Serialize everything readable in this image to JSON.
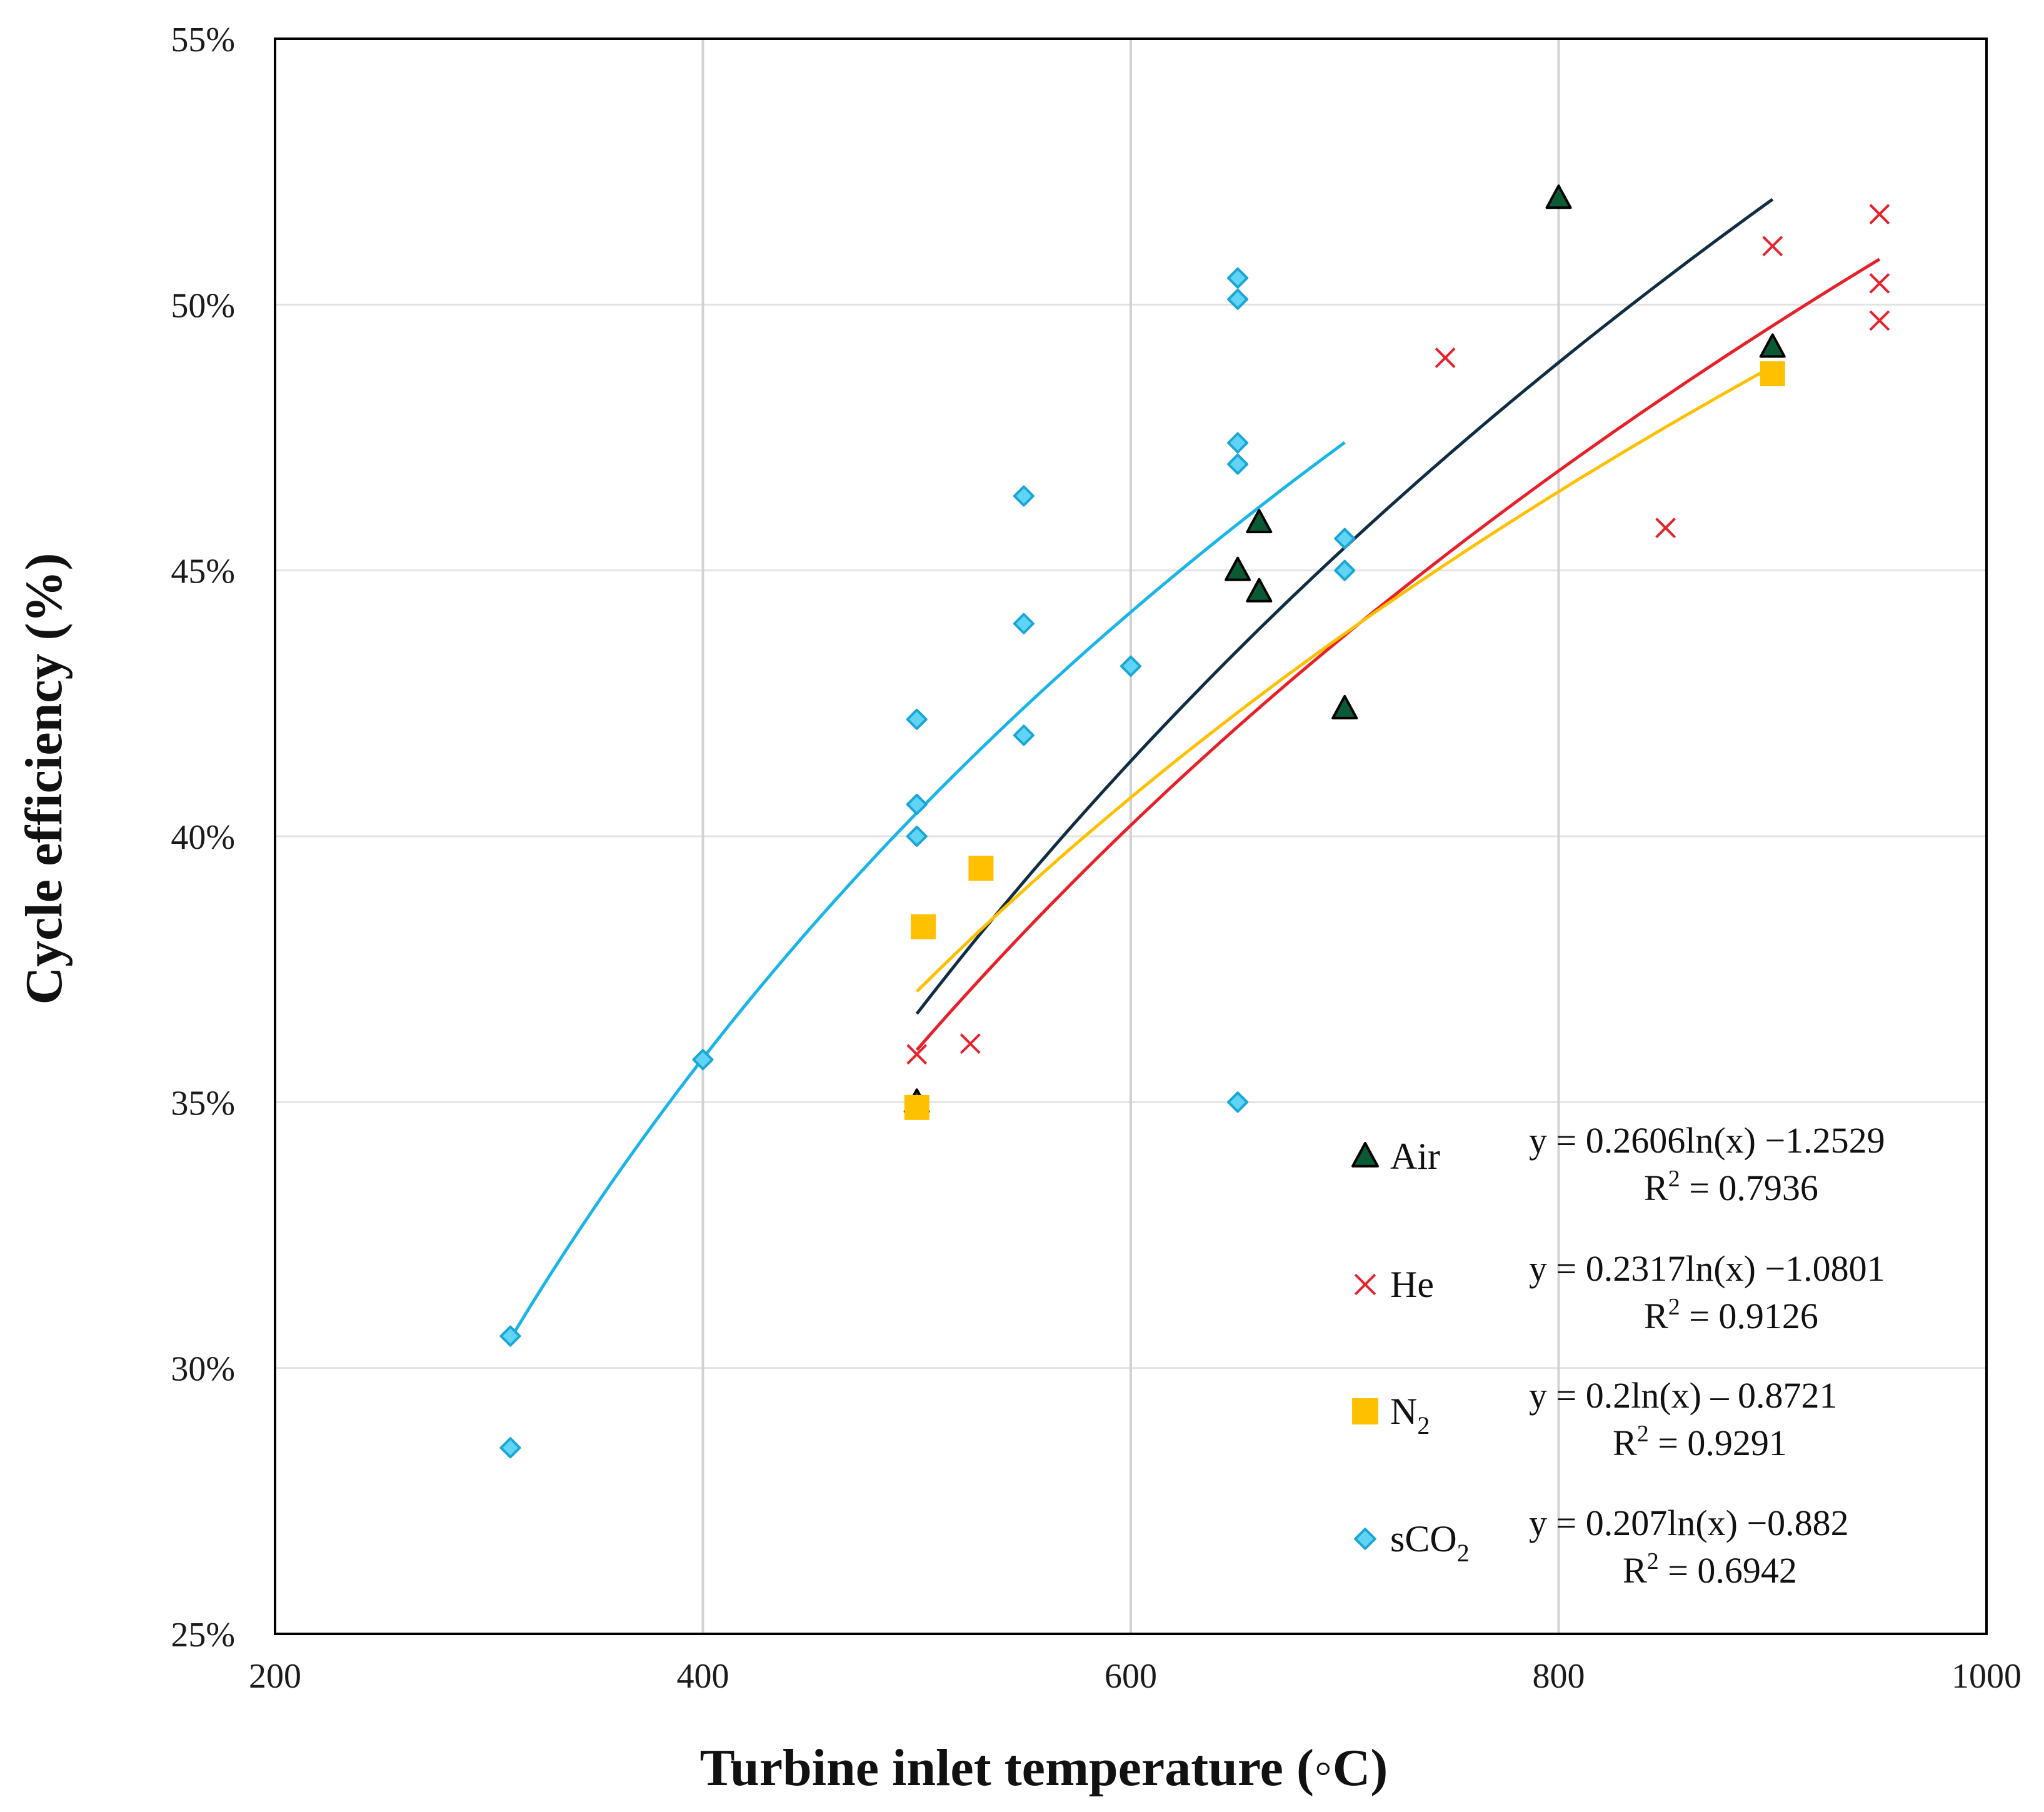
{
  "chart_data": {
    "type": "scatter",
    "title": "",
    "xlabel": "Turbine inlet temperature (◦C)",
    "ylabel": "Cycle efficiency (%)",
    "xlim": [
      200,
      1000
    ],
    "ylim": [
      0.25,
      0.55
    ],
    "x_ticks": [
      200,
      400,
      600,
      800,
      1000
    ],
    "x_tick_labels": [
      "200",
      "400",
      "600",
      "800",
      "1000"
    ],
    "y_ticks": [
      0.25,
      0.3,
      0.35,
      0.4,
      0.45,
      0.5,
      0.55
    ],
    "y_tick_labels": [
      "25%",
      "30%",
      "35%",
      "40%",
      "45%",
      "50%",
      "55%"
    ],
    "grid": {
      "vertical": true,
      "horizontal": true
    },
    "legend_position": "bottom-right",
    "series": [
      {
        "name": "Air",
        "name_main": "Air",
        "name_sub": "",
        "marker": "triangle",
        "color": "#0b5a36",
        "edge": "#000000",
        "points": [
          [
            500,
            0.35
          ],
          [
            650,
            0.45
          ],
          [
            660,
            0.459
          ],
          [
            660,
            0.446
          ],
          [
            700,
            0.424
          ],
          [
            800,
            0.52
          ],
          [
            900,
            0.492
          ]
        ],
        "trend": {
          "a": 0.2606,
          "b": -1.2529,
          "x_range": [
            500,
            900
          ],
          "color": "#0f2d45"
        },
        "equation": "y = 0.2606ln(x) −1.2529",
        "r2_value": " = 0.7936"
      },
      {
        "name": "He",
        "name_main": "He",
        "name_sub": "",
        "marker": "x",
        "color": "#e8202a",
        "edge": "#e8202a",
        "points": [
          [
            500,
            0.359
          ],
          [
            525,
            0.361
          ],
          [
            747,
            0.49
          ],
          [
            850,
            0.458
          ],
          [
            900,
            0.511
          ],
          [
            950,
            0.517
          ],
          [
            950,
            0.504
          ],
          [
            950,
            0.497
          ]
        ],
        "trend": {
          "a": 0.2317,
          "b": -1.0801,
          "x_range": [
            500,
            950
          ],
          "color": "#e8202a"
        },
        "equation": "y = 0.2317ln(x) −1.0801",
        "r2_value": " = 0.9126"
      },
      {
        "name": "N2",
        "name_main": "N",
        "name_sub": "2",
        "marker": "square",
        "color": "#ffc000",
        "edge": "#ffc000",
        "points": [
          [
            500,
            0.349
          ],
          [
            503,
            0.383
          ],
          [
            530,
            0.394
          ],
          [
            900,
            0.487
          ]
        ],
        "trend": {
          "a": 0.2,
          "b": -0.8721,
          "x_range": [
            500,
            900
          ],
          "color": "#ffc000"
        },
        "equation": "y = 0.2ln(x) – 0.8721",
        "r2_value": " = 0.9291"
      },
      {
        "name": "sCO2",
        "name_main": "sCO",
        "name_sub": "2",
        "marker": "diamond",
        "color": "#5fd4f5",
        "edge": "#1aa6d6",
        "points": [
          [
            310,
            0.306
          ],
          [
            310,
            0.285
          ],
          [
            400,
            0.358
          ],
          [
            500,
            0.422
          ],
          [
            500,
            0.406
          ],
          [
            500,
            0.4
          ],
          [
            550,
            0.464
          ],
          [
            550,
            0.44
          ],
          [
            550,
            0.419
          ],
          [
            600,
            0.432
          ],
          [
            650,
            0.505
          ],
          [
            650,
            0.501
          ],
          [
            650,
            0.474
          ],
          [
            650,
            0.47
          ],
          [
            650,
            0.35
          ],
          [
            700,
            0.456
          ],
          [
            700,
            0.45
          ]
        ],
        "trend": {
          "a": 0.207,
          "b": -0.882,
          "x_range": [
            310,
            700
          ],
          "color": "#19b5e8"
        },
        "equation": "y = 0.207ln(x) −0.882",
        "r2_value": " = 0.6942"
      }
    ]
  },
  "labels": {
    "r2_prefix": "R",
    "r2_power": "2"
  }
}
